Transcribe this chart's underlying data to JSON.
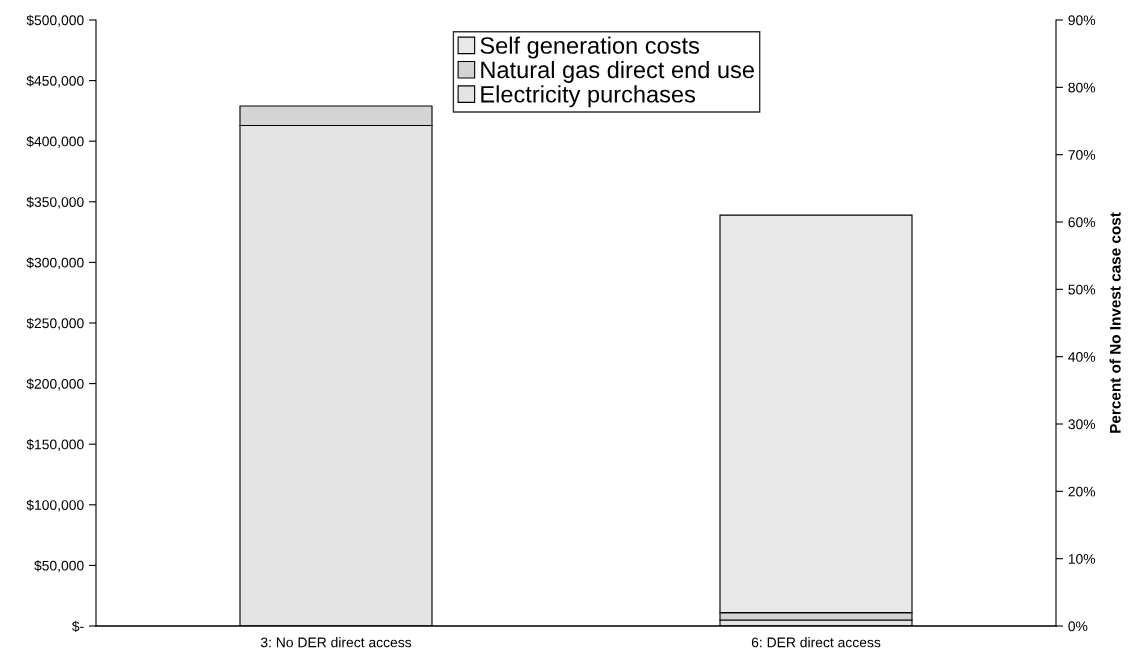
{
  "chart_data": {
    "type": "bar",
    "stacked": true,
    "categories": [
      "3: No DER direct access",
      "6: DER direct access"
    ],
    "series": [
      {
        "name": "Electricity purchases",
        "color": "#e4e4e4",
        "values": [
          413000,
          5000
        ]
      },
      {
        "name": "Natural gas direct end use",
        "color": "#d4d4d4",
        "values": [
          16000,
          6000
        ]
      },
      {
        "name": "Self generation costs",
        "color": "#e8e8e8",
        "values": [
          null,
          328000
        ]
      }
    ],
    "ylim": [
      0,
      500000
    ],
    "yticks": [
      {
        "value": 0,
        "label": "$-"
      },
      {
        "value": 50000,
        "label": "$50,000"
      },
      {
        "value": 100000,
        "label": "$100,000"
      },
      {
        "value": 150000,
        "label": "$150,000"
      },
      {
        "value": 200000,
        "label": "$200,000"
      },
      {
        "value": 250000,
        "label": "$250,000"
      },
      {
        "value": 300000,
        "label": "$300,000"
      },
      {
        "value": 350000,
        "label": "$350,000"
      },
      {
        "value": 400000,
        "label": "$400,000"
      },
      {
        "value": 450000,
        "label": "$450,000"
      },
      {
        "value": 500000,
        "label": "$500,000"
      }
    ],
    "y2lim": [
      0,
      90
    ],
    "y2ticks": [
      {
        "value": 0,
        "label": "0%"
      },
      {
        "value": 10,
        "label": "10%"
      },
      {
        "value": 20,
        "label": "20%"
      },
      {
        "value": 30,
        "label": "30%"
      },
      {
        "value": 40,
        "label": "40%"
      },
      {
        "value": 50,
        "label": "50%"
      },
      {
        "value": 60,
        "label": "60%"
      },
      {
        "value": 70,
        "label": "70%"
      },
      {
        "value": 80,
        "label": "80%"
      },
      {
        "value": 90,
        "label": "90%"
      }
    ],
    "y2label": "Percent of No Invest case cost",
    "legend": "top",
    "grid": false
  }
}
